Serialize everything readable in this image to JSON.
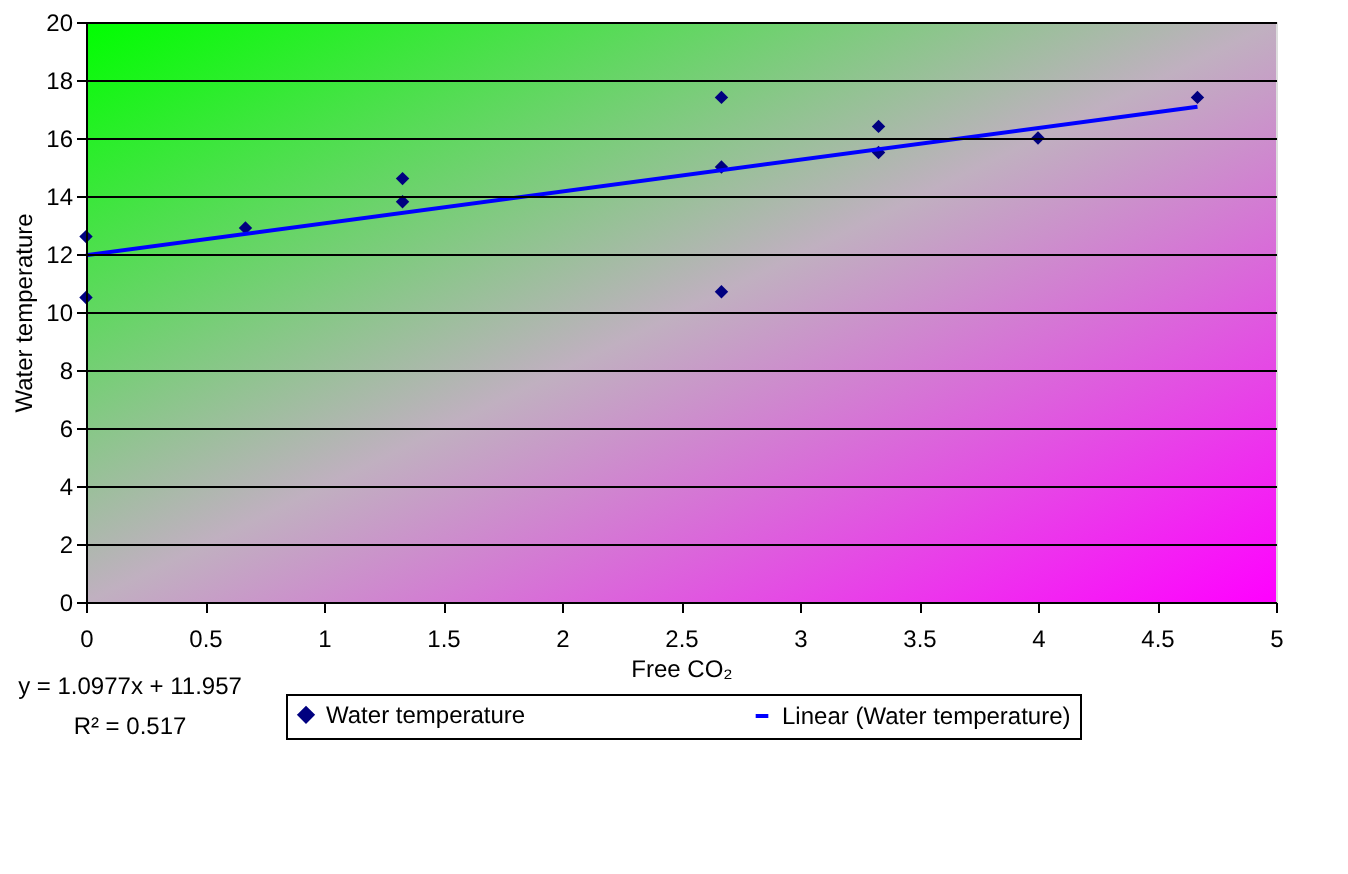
{
  "chart_data": {
    "type": "scatter",
    "xlabel": "Free CO₂",
    "ylabel": "Water temperature",
    "xlim": [
      0,
      5
    ],
    "xticks": [
      0,
      0.5,
      1,
      1.5,
      2,
      2.5,
      3,
      3.5,
      4,
      4.5,
      5
    ],
    "ylim": [
      0,
      20
    ],
    "yticks": [
      0,
      2,
      4,
      6,
      8,
      10,
      12,
      14,
      16,
      18,
      20
    ],
    "grid": "y",
    "legend": "bottom",
    "series": [
      {
        "name": "Water temperature",
        "color": "#000080",
        "marker": "diamond",
        "x": [
          0,
          0,
          0.67,
          1.33,
          1.33,
          2.67,
          2.67,
          2.67,
          3.33,
          3.33,
          4,
          4.67
        ],
        "values": [
          12.6,
          10.5,
          12.9,
          14.6,
          13.8,
          17.4,
          15.0,
          10.7,
          16.4,
          15.5,
          16.0,
          17.4
        ]
      },
      {
        "name": "Linear (Water temperature)",
        "color": "#0000ff",
        "type": "line",
        "line_style": "solid",
        "x": [
          0,
          4.67
        ],
        "values": [
          11.96,
          17.08
        ]
      }
    ],
    "annotations": [
      "y = 1.0977x + 11.957",
      "R² = 0.517"
    ]
  }
}
